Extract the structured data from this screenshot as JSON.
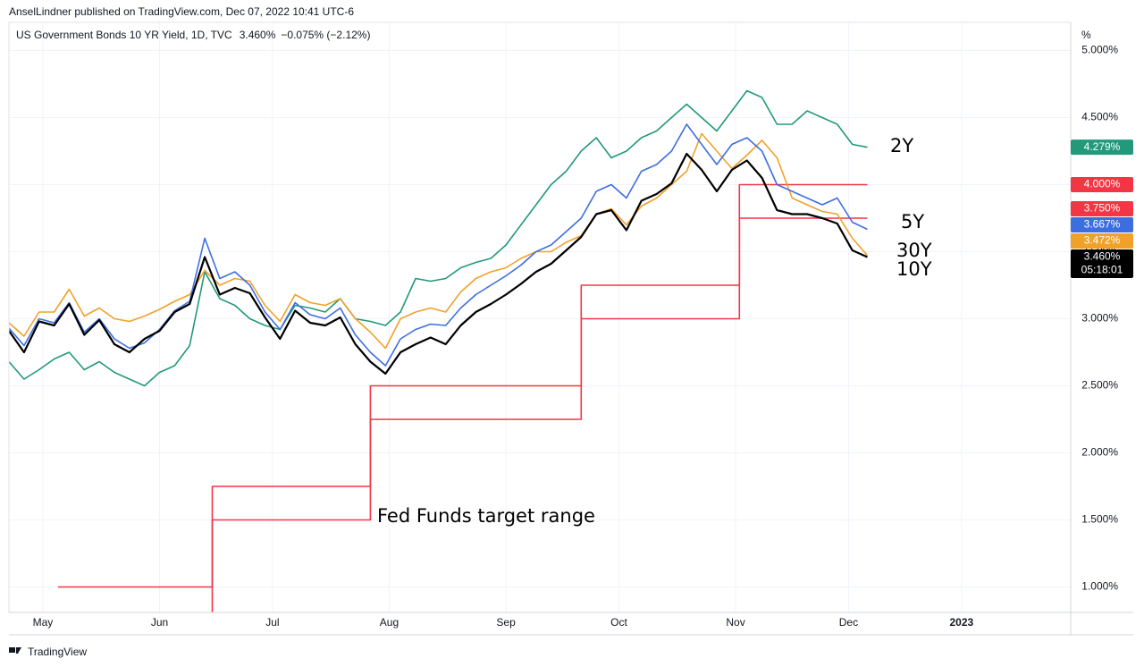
{
  "header": {
    "published": "AnselLindner published on TradingView.com, Dec 07, 2022 10:41 UTC-6",
    "symbol": "US Government Bonds 10 YR Yield, 1D, TVC",
    "price": "3.460%",
    "change": "−0.075% (−2.12%)",
    "axis_unit": "%"
  },
  "footer": {
    "brand": "TradingView"
  },
  "chart_data": {
    "type": "line",
    "grid": true,
    "xlim": [
      112,
      394
    ],
    "xticks": [
      {
        "value": 121,
        "label": "May"
      },
      {
        "value": 152,
        "label": "Jun"
      },
      {
        "value": 182,
        "label": "Jul"
      },
      {
        "value": 213,
        "label": "Aug"
      },
      {
        "value": 244,
        "label": "Sep"
      },
      {
        "value": 274,
        "label": "Oct"
      },
      {
        "value": 305,
        "label": "Nov"
      },
      {
        "value": 335,
        "label": "Dec"
      },
      {
        "value": 365,
        "label": "2023"
      }
    ],
    "ylim": [
      0.81,
      5.21
    ],
    "yticks": [
      {
        "value": 1,
        "label": "1.000%"
      },
      {
        "value": 1.5,
        "label": "1.500%"
      },
      {
        "value": 2,
        "label": "2.000%"
      },
      {
        "value": 2.5,
        "label": "2.500%"
      },
      {
        "value": 3,
        "label": "3.000%"
      },
      {
        "value": 3.5,
        "label": "3.500%"
      },
      {
        "value": 4,
        "label": "4.000%"
      },
      {
        "value": 4.5,
        "label": "4.500%"
      },
      {
        "value": 5,
        "label": "5.000%"
      }
    ],
    "x": [
      112,
      116,
      120,
      124,
      128,
      132,
      136,
      140,
      144,
      148,
      152,
      156,
      160,
      164,
      168,
      172,
      176,
      180,
      184,
      188,
      192,
      196,
      200,
      204,
      208,
      212,
      216,
      220,
      224,
      228,
      232,
      236,
      240,
      244,
      248,
      252,
      256,
      260,
      264,
      268,
      272,
      276,
      280,
      284,
      288,
      292,
      296,
      300,
      304,
      308,
      312,
      316,
      320,
      324,
      328,
      332,
      336,
      340
    ],
    "series": [
      {
        "name": "2Y",
        "color": "#22997a",
        "last_label": "4.279%",
        "values": [
          2.68,
          2.55,
          2.62,
          2.7,
          2.75,
          2.62,
          2.68,
          2.6,
          2.55,
          2.5,
          2.6,
          2.65,
          2.8,
          3.35,
          3.15,
          3.1,
          3.0,
          2.95,
          2.92,
          3.1,
          3.08,
          3.05,
          3.15,
          3.0,
          2.98,
          2.95,
          3.05,
          3.3,
          3.28,
          3.3,
          3.38,
          3.42,
          3.45,
          3.55,
          3.7,
          3.85,
          4.0,
          4.1,
          4.25,
          4.35,
          4.2,
          4.25,
          4.35,
          4.4,
          4.5,
          4.6,
          4.5,
          4.4,
          4.55,
          4.7,
          4.65,
          4.45,
          4.45,
          4.55,
          4.5,
          4.45,
          4.3,
          4.279
        ]
      },
      {
        "name": "5Y",
        "color": "#3d6ee0",
        "last_label": "3.667%",
        "values": [
          2.93,
          2.8,
          3.0,
          2.97,
          3.12,
          2.9,
          3.0,
          2.85,
          2.78,
          2.82,
          2.92,
          3.06,
          3.13,
          3.6,
          3.3,
          3.35,
          3.25,
          3.05,
          2.92,
          3.12,
          3.03,
          3.0,
          3.08,
          2.88,
          2.75,
          2.65,
          2.85,
          2.92,
          2.96,
          2.95,
          3.08,
          3.18,
          3.25,
          3.32,
          3.4,
          3.5,
          3.55,
          3.65,
          3.75,
          3.95,
          4.0,
          3.9,
          4.1,
          4.15,
          4.25,
          4.45,
          4.3,
          4.15,
          4.3,
          4.35,
          4.25,
          4.0,
          3.95,
          3.9,
          3.85,
          3.9,
          3.72,
          3.667
        ]
      },
      {
        "name": "30Y",
        "color": "#f0a12a",
        "last_label": "3.472%",
        "values": [
          2.97,
          2.87,
          3.05,
          3.05,
          3.22,
          3.02,
          3.08,
          3.0,
          2.98,
          3.02,
          3.07,
          3.13,
          3.18,
          3.36,
          3.25,
          3.3,
          3.28,
          3.1,
          2.98,
          3.18,
          3.12,
          3.1,
          3.15,
          3.0,
          2.9,
          2.78,
          3.0,
          3.05,
          3.08,
          3.05,
          3.2,
          3.3,
          3.35,
          3.38,
          3.45,
          3.5,
          3.5,
          3.57,
          3.62,
          3.78,
          3.82,
          3.7,
          3.84,
          3.9,
          4.0,
          4.1,
          4.38,
          4.25,
          4.12,
          4.22,
          4.33,
          4.2,
          3.9,
          3.85,
          3.8,
          3.78,
          3.6,
          3.472
        ]
      },
      {
        "name": "10Y",
        "color": "#000000",
        "last_label": "3.460%",
        "countdown": "05:18:01",
        "values": [
          2.91,
          2.75,
          2.98,
          2.95,
          3.11,
          2.88,
          2.99,
          2.81,
          2.75,
          2.85,
          2.91,
          3.05,
          3.11,
          3.46,
          3.18,
          3.23,
          3.19,
          3.01,
          2.85,
          3.06,
          2.97,
          2.95,
          3.01,
          2.81,
          2.68,
          2.59,
          2.75,
          2.81,
          2.86,
          2.81,
          2.95,
          3.05,
          3.11,
          3.18,
          3.26,
          3.35,
          3.41,
          3.51,
          3.61,
          3.78,
          3.81,
          3.66,
          3.88,
          3.93,
          4.01,
          4.23,
          4.11,
          3.95,
          4.11,
          4.18,
          4.05,
          3.81,
          3.78,
          3.78,
          3.75,
          3.71,
          3.51,
          3.46
        ]
      },
      {
        "color": "#f23645",
        "last_label": "4.000%",
        "x": [
          125,
          166,
          166,
          208,
          208,
          264,
          264,
          306,
          306,
          340
        ],
        "values": [
          1,
          1,
          1.75,
          1.75,
          2.5,
          2.5,
          3.25,
          3.25,
          4,
          4
        ]
      },
      {
        "color": "#f23645",
        "last_label": "3.750%",
        "x": [
          166,
          166,
          208,
          208,
          264,
          264,
          306,
          306,
          340
        ],
        "values": [
          0.75,
          1.5,
          1.5,
          2.25,
          2.25,
          3,
          3,
          3.75,
          3.75
        ]
      }
    ],
    "annotations": [
      "2Y",
      "5Y",
      "30Y",
      "10Y",
      "Fed Funds target range"
    ]
  }
}
